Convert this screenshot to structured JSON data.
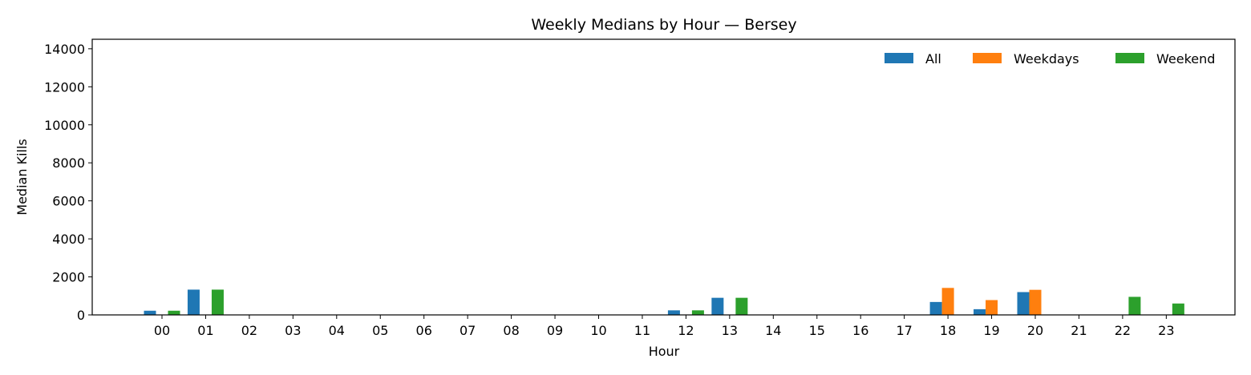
{
  "chart_data": {
    "type": "bar",
    "title": "Weekly Medians by Hour — Bersey",
    "xlabel": "Hour",
    "ylabel": "Median Kills",
    "ylim": [
      0,
      14500
    ],
    "yticks": [
      0,
      2000,
      4000,
      6000,
      8000,
      10000,
      12000,
      14000
    ],
    "grid": false,
    "legend_position": "top-right",
    "categories": [
      "00",
      "01",
      "02",
      "03",
      "04",
      "05",
      "06",
      "07",
      "08",
      "09",
      "10",
      "11",
      "12",
      "13",
      "14",
      "15",
      "16",
      "17",
      "18",
      "19",
      "20",
      "21",
      "22",
      "23"
    ],
    "series": [
      {
        "name": "All",
        "color": "#1f77b4",
        "values": [
          220,
          1330,
          0,
          0,
          0,
          0,
          0,
          0,
          0,
          0,
          0,
          0,
          240,
          900,
          0,
          0,
          0,
          0,
          680,
          300,
          1200,
          0,
          0,
          0
        ]
      },
      {
        "name": "Weekdays",
        "color": "#ff7f0e",
        "values": [
          0,
          0,
          0,
          0,
          0,
          0,
          0,
          0,
          0,
          0,
          0,
          0,
          0,
          0,
          0,
          0,
          0,
          0,
          1420,
          780,
          1320,
          0,
          0,
          0
        ]
      },
      {
        "name": "Weekend",
        "color": "#2ca02c",
        "values": [
          220,
          1330,
          0,
          0,
          0,
          0,
          0,
          0,
          0,
          0,
          0,
          0,
          240,
          900,
          0,
          0,
          0,
          0,
          0,
          0,
          0,
          0,
          950,
          600
        ]
      }
    ]
  }
}
